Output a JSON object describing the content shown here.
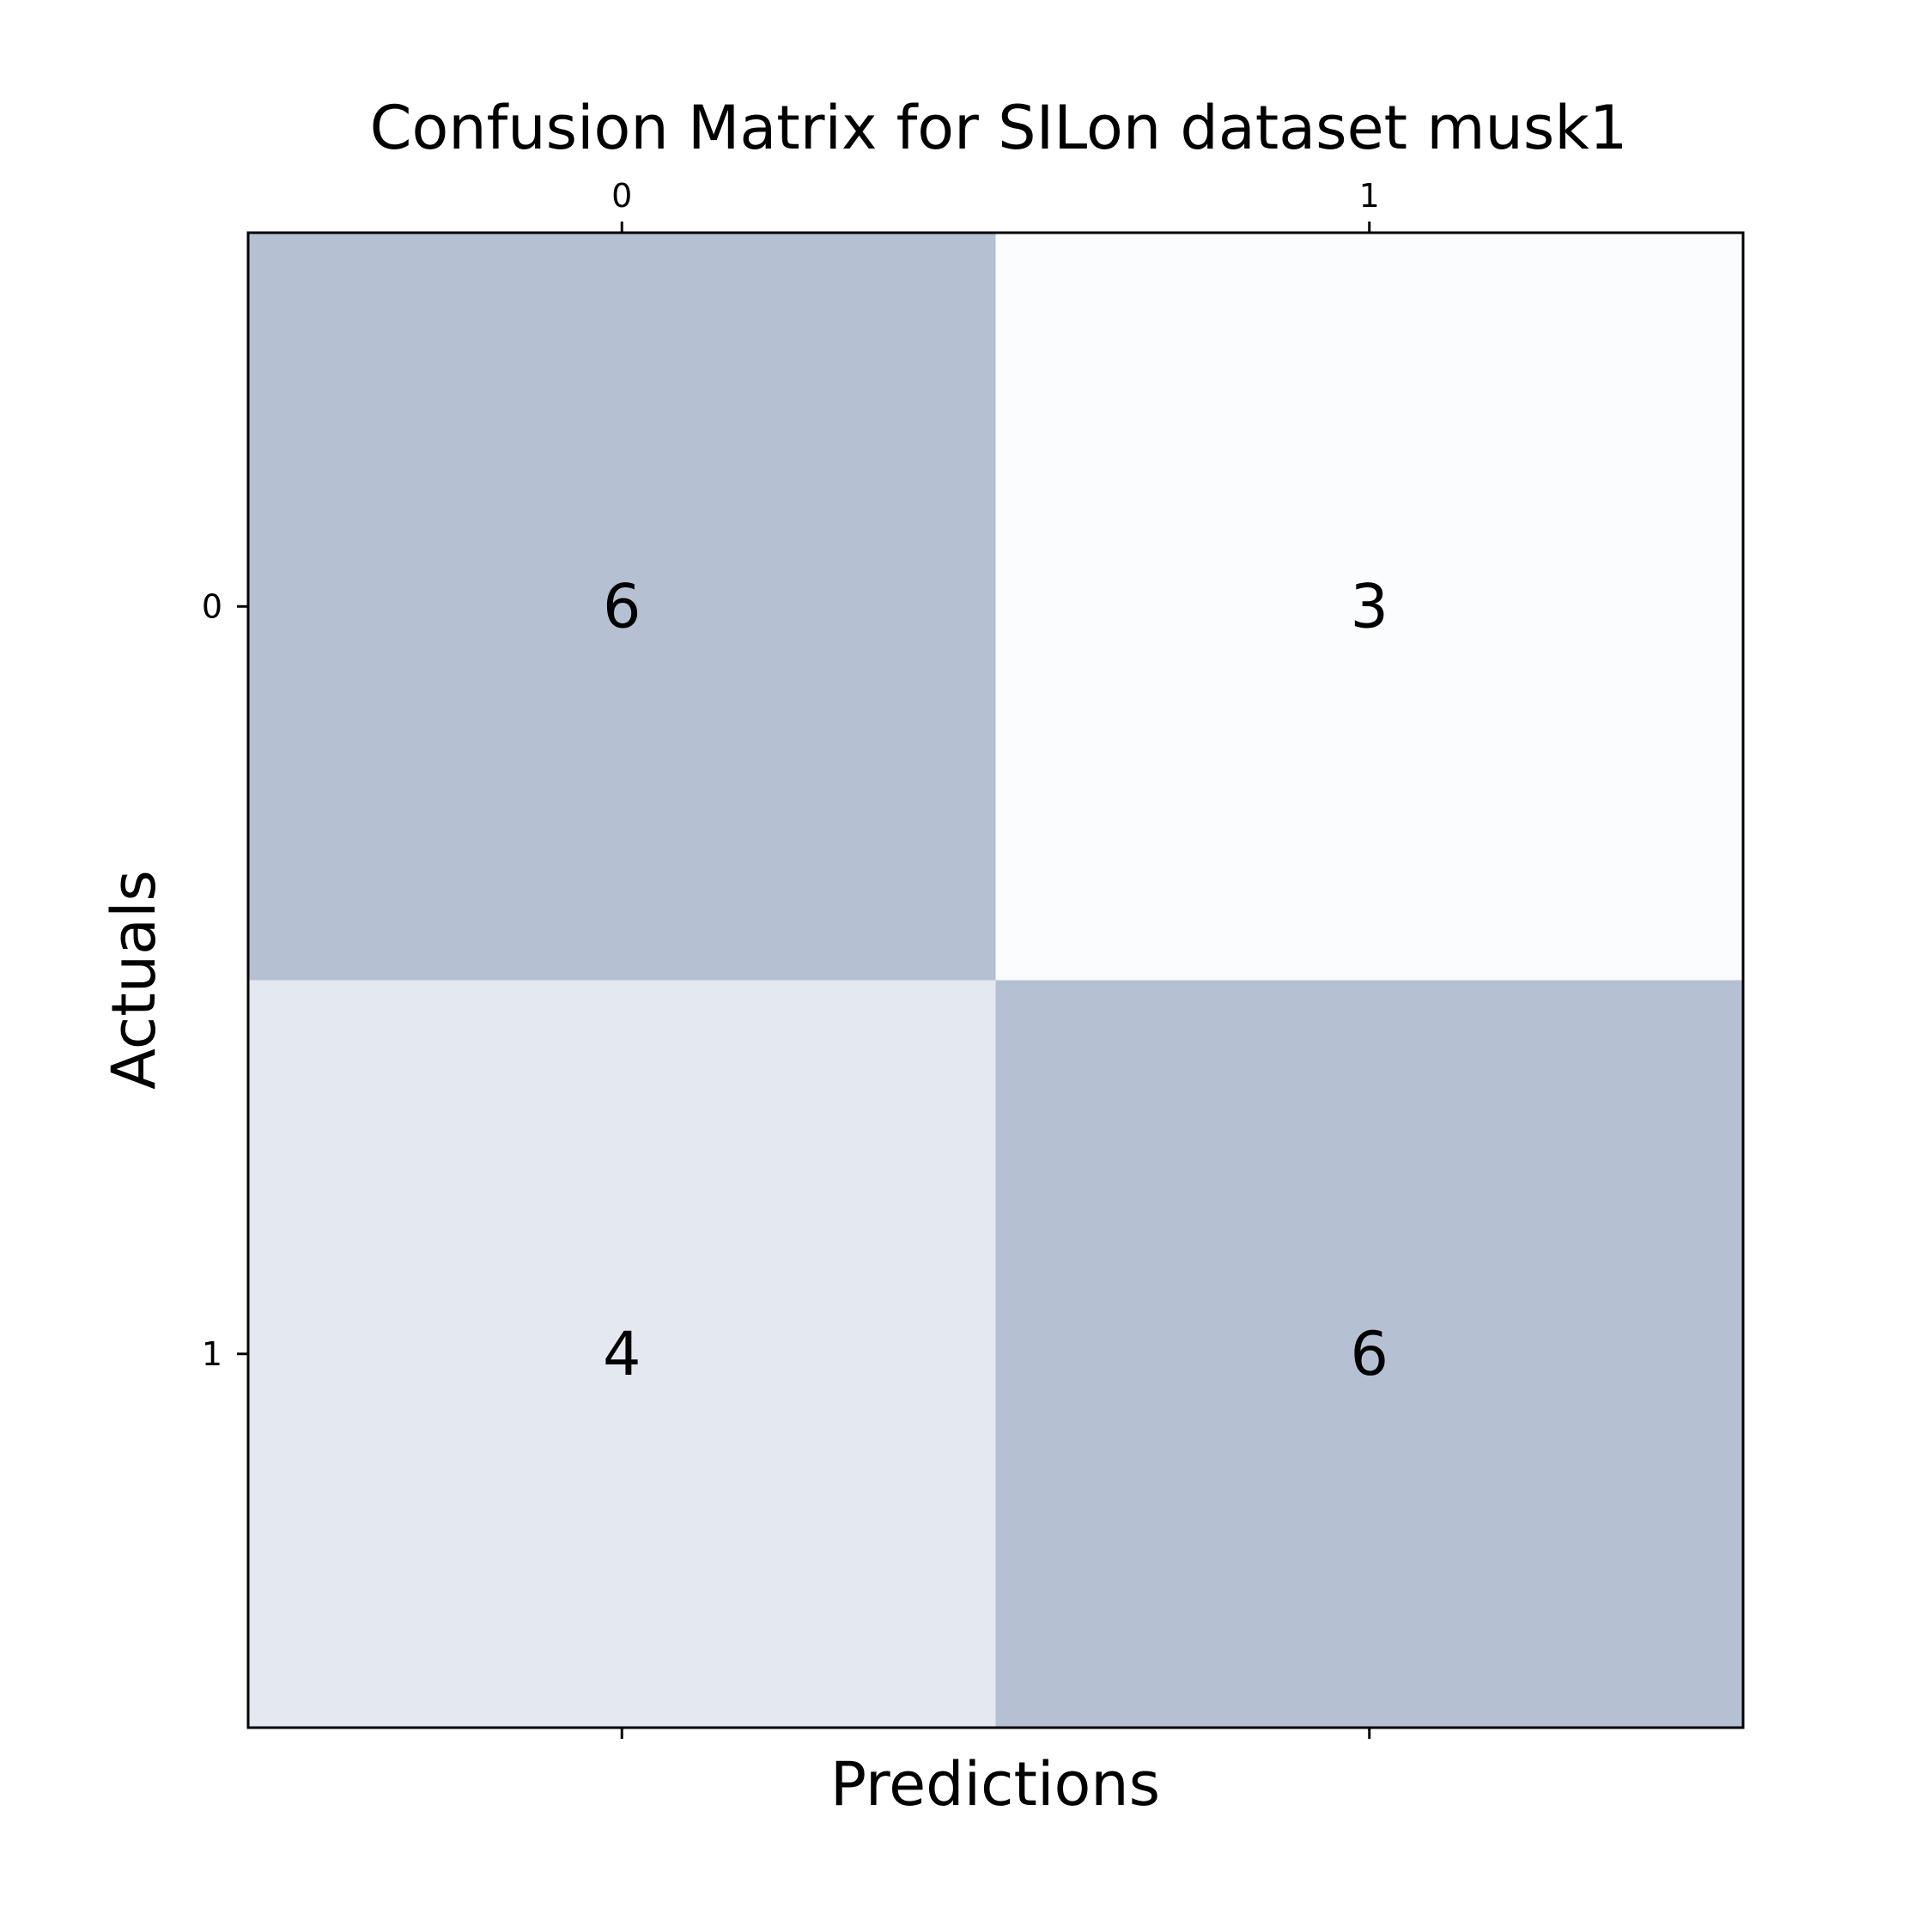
{
  "chart_data": {
    "type": "heatmap",
    "title": "Confusion Matrix for SILon dataset musk1",
    "xlabel": "Predictions",
    "ylabel": "Actuals",
    "x_categories": [
      "0",
      "1"
    ],
    "y_categories": [
      "0",
      "1"
    ],
    "values": [
      [
        6,
        3
      ],
      [
        4,
        6
      ]
    ],
    "x_tick_position": "top",
    "grid": false,
    "colors": {
      "low": "#fbfcfe",
      "high": "#b5c1d3",
      "frame": "#000000"
    }
  }
}
